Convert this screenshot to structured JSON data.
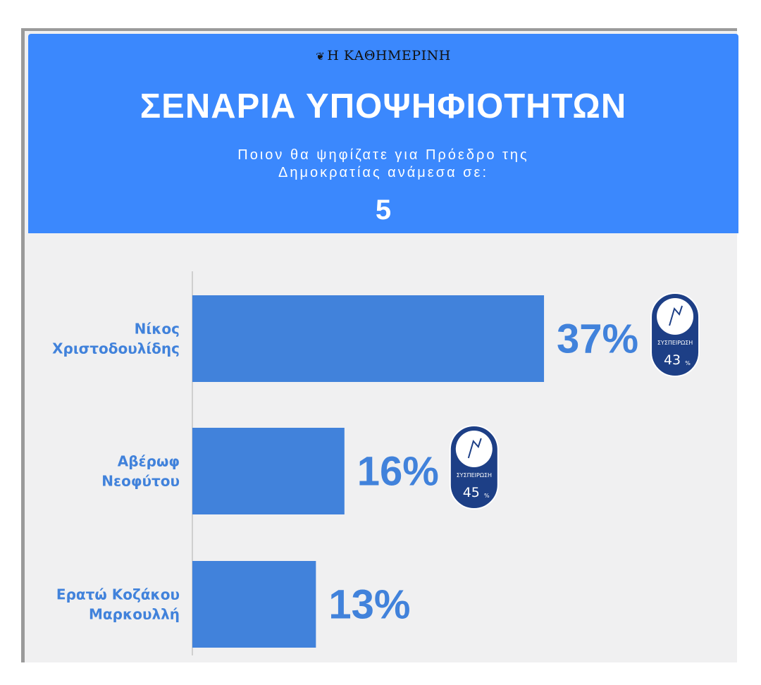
{
  "header": {
    "brand": "Η ΚΑΘΗΜΕΡΙΝΗ",
    "brand_icon": "eagle-logo-icon",
    "title": "ΣΕΝΑΡΙΑ ΥΠΟΨΗΦΙΟΤΗΤΩΝ",
    "subtitle_line1": "Ποιον θα ψηφίζατε για Πρόεδρο της",
    "subtitle_line2": "Δημοκρατίας ανάμεσα σε:",
    "scenario_number": "5"
  },
  "colors": {
    "header_bg": "#3b88fd",
    "bar": "#4182db",
    "value_text": "#4182db",
    "label_text": "#4182db",
    "badge_bg": "#1d3f86",
    "panel_bg": "#f0f0f1"
  },
  "chart_data": {
    "type": "bar",
    "orientation": "horizontal",
    "categories": [
      "Νίκος Χριστοδουλίδης",
      "Αβέρωφ Νεοφύτου",
      "Ερατώ Κοζάκου Μαρκουλλή"
    ],
    "category_lines": [
      [
        "Νίκος",
        "Χριστοδουλίδης"
      ],
      [
        "Αβέρωφ",
        "Νεοφύτου"
      ],
      [
        "Ερατώ Κοζάκου",
        "Μαρκουλλή"
      ]
    ],
    "values": [
      37,
      16,
      13
    ],
    "value_labels": [
      "37%",
      "16%",
      "13%"
    ],
    "xlim": [
      0,
      41
    ],
    "grid": false,
    "badges": [
      {
        "category_index": 0,
        "label": "ΣΥΣΠΕΙΡΩΣΗ",
        "value": "43",
        "unit": "%",
        "icon": "party-logo-icon"
      },
      {
        "category_index": 1,
        "label": "ΣΥΣΠΕΙΡΩΣΗ",
        "value": "45",
        "unit": "%",
        "icon": "party-logo-icon"
      }
    ]
  }
}
